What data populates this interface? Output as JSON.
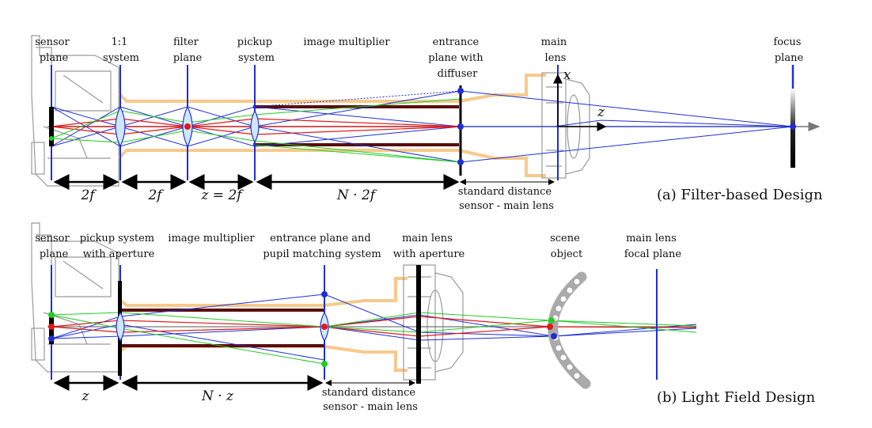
{
  "panel_a": {
    "labels": {
      "sensor_plane": [
        "sensor",
        "plane"
      ],
      "one_to_one": [
        "1:1",
        "system"
      ],
      "filter_plane": [
        "filter",
        "plane"
      ],
      "pickup_system": [
        "pickup",
        "system"
      ],
      "image_multiplier": "image multiplier",
      "entrance_plane": [
        "entrance",
        "plane with",
        "diffuser"
      ],
      "main_lens": [
        "main",
        "lens"
      ],
      "focus_plane": [
        "focus",
        "plane"
      ]
    },
    "axes": {
      "x": "x",
      "z": "z"
    },
    "dimensions": [
      "2f",
      "2f",
      "z = 2f",
      "N · 2f"
    ],
    "standard_distance": [
      "standard distance",
      "sensor - main lens"
    ],
    "caption": "(a) Filter-based Design"
  },
  "panel_b": {
    "labels": {
      "sensor_plane": [
        "sensor",
        "plane"
      ],
      "pickup_aperture": [
        "pickup system",
        "with aperture"
      ],
      "image_multiplier": "image multiplier",
      "entrance_pupil": [
        "entrance plane and",
        "pupil matching system"
      ],
      "main_lens_aperture": [
        "main lens",
        "with aperture"
      ],
      "scene_object": [
        "scene",
        "object"
      ],
      "main_lens_focal": [
        "main lens",
        "focal plane"
      ]
    },
    "dimensions": [
      "z",
      "N · z"
    ],
    "standard_distance": [
      "standard distance",
      "sensor - main lens"
    ],
    "caption": "(b) Light Field Design"
  },
  "colors": {
    "blue": "#1f2fd6",
    "red": "#e01818",
    "green": "#22cc22",
    "dark_red": "#5a0b0b",
    "tube": "#f7c98c",
    "camera": "#9a9a9a"
  }
}
